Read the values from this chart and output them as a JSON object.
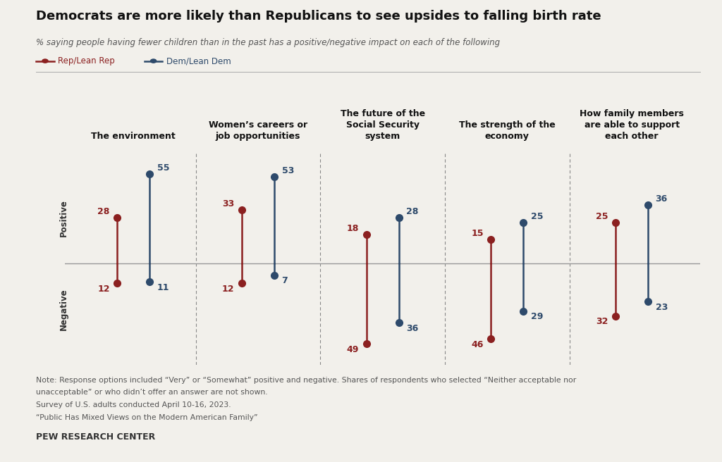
{
  "title": "Democrats are more likely than Republicans to see upsides to falling birth rate",
  "subtitle": "% saying people having fewer children than in the past has a positive/negative impact on each of the following",
  "categories": [
    "The environment",
    "Women’s careers or\njob opportunities",
    "The future of the\nSocial Security\nsystem",
    "The strength of the\neconomy",
    "How family members\nare able to support\neach other"
  ],
  "rep_positive": [
    28,
    33,
    18,
    15,
    25
  ],
  "rep_negative": [
    12,
    12,
    49,
    46,
    32
  ],
  "dem_positive": [
    55,
    53,
    28,
    25,
    36
  ],
  "dem_negative": [
    11,
    7,
    36,
    29,
    23
  ],
  "rep_color": "#8B2020",
  "dem_color": "#2E4A6B",
  "note_line1": "Note: Response options included “Very” or “Somewhat” positive and negative. Shares of respondents who selected “Neither acceptable nor",
  "note_line2": "unacceptable” or who didn’t offer an answer are not shown.",
  "note_line3": "Survey of U.S. adults conducted April 10-16, 2023.",
  "note_line4": "“Public Has Mixed Views on the Modern American Family”",
  "source": "PEW RESEARCH CENTER",
  "background_color": "#F2F0EB"
}
